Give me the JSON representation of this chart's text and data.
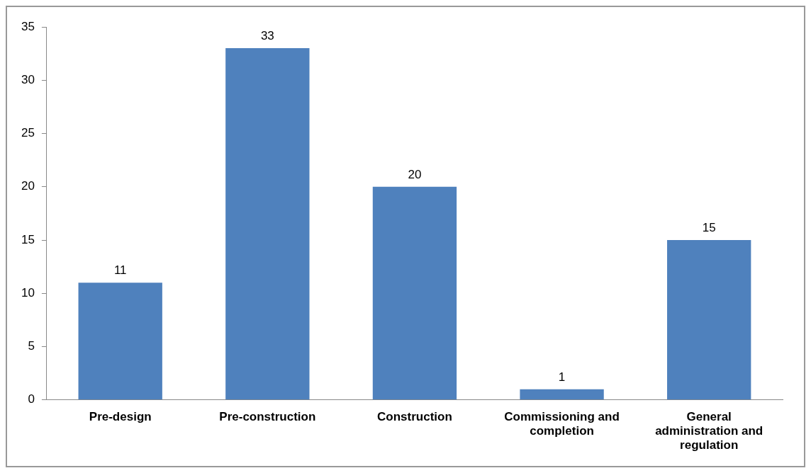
{
  "chart_data": {
    "type": "bar",
    "categories": [
      "Pre-design",
      "Pre-construction",
      "Construction",
      "Commissioning and completion",
      "General administration and regulation"
    ],
    "values": [
      11,
      33,
      20,
      1,
      15
    ],
    "color": "#4f81bd",
    "ylim": [
      0,
      35
    ],
    "yticks": [
      0,
      5,
      10,
      15,
      20,
      25,
      30,
      35
    ],
    "grid": false,
    "legend": false,
    "data_labels": true
  }
}
